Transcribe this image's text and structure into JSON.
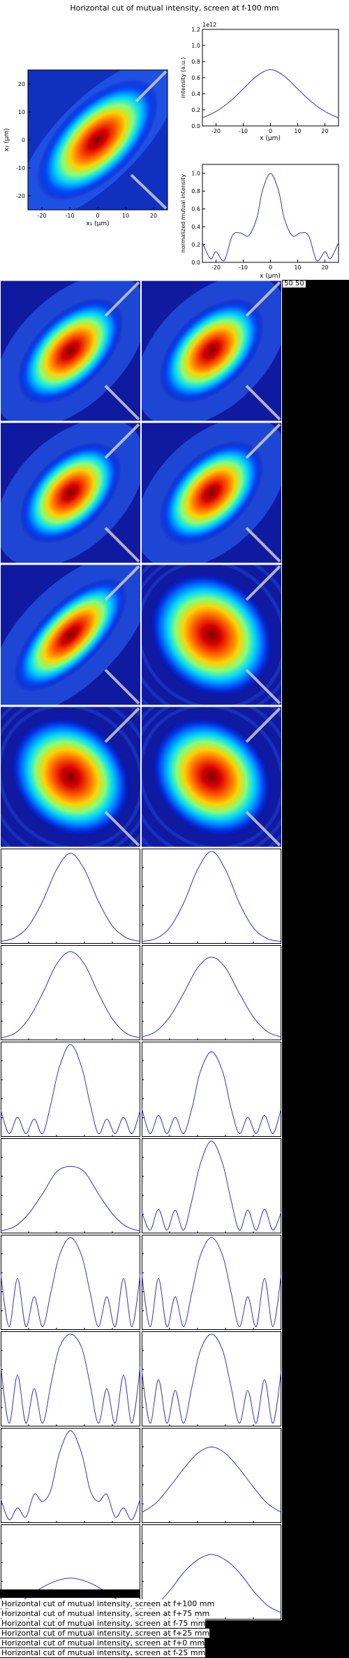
{
  "figure": {
    "title": "Horizontal cut of mutual intensity, screen at f-100 mm",
    "corner_label": "50 50",
    "heatmap": {
      "xlabel": "x₁ (μm)",
      "ylabel": "x₂ (μm)",
      "ticks": [
        "-20",
        "-10",
        "0",
        "10",
        "20"
      ]
    },
    "intensity_plot": {
      "ylabel": "intensity (a.u.)",
      "xlabel": "x (μm)",
      "exponent_label": "1e12",
      "yticks": [
        "0.0",
        "0.2",
        "0.4",
        "0.6",
        "0.8",
        "1.0",
        "1.2"
      ],
      "xticks": [
        "-20",
        "-10",
        "0",
        "10",
        "20"
      ]
    },
    "coherence_plot": {
      "ylabel": "normalized mutual intensity",
      "xlabel": "x (μm)",
      "yticks": [
        "0.0",
        "0.2",
        "0.4",
        "0.6",
        "0.8",
        "1.0"
      ],
      "xticks": [
        "-20",
        "-10",
        "0",
        "10",
        "20"
      ]
    }
  },
  "titles_list": [
    "Horizontal cut of mutual intensity, screen at f+100 mm",
    "Horizontal cut of mutual intensity, screen at f+75 mm",
    "Horizontal cut of mutual intensity, screen at f-75 mm",
    "Horizontal cut of mutual intensity, screen at f+25 mm",
    "Horizontal cut of mutual intensity, screen at f+0 mm",
    "Horizontal cut of mutual intensity, screen at f-25 mm"
  ],
  "colors": {
    "line": "#3333cc",
    "heat_low": "#00007f",
    "heat_high": "#7f0000",
    "cut_line": "#cccccc"
  },
  "chart_data": [
    {
      "type": "heatmap",
      "title": "Horizontal cut of mutual intensity, screen at f-100 mm",
      "xlabel": "x₁ (μm)",
      "ylabel": "x₂ (μm)",
      "xlim": [
        -25,
        25
      ],
      "ylim": [
        -25,
        25
      ],
      "correlation": 0.85,
      "width": 11
    },
    {
      "type": "line",
      "xlabel": "x (μm)",
      "ylabel": "intensity (a.u.)",
      "xlim": [
        -25,
        25
      ],
      "ylim": [
        0,
        1200000000000.0
      ],
      "x": [
        -25,
        -20,
        -15,
        -10,
        -5,
        0,
        5,
        10,
        15,
        20,
        25
      ],
      "y": [
        100000000000.0,
        180000000000.0,
        300000000000.0,
        460000000000.0,
        620000000000.0,
        700000000000.0,
        620000000000.0,
        460000000000.0,
        300000000000.0,
        180000000000.0,
        100000000000.0
      ]
    },
    {
      "type": "line",
      "xlabel": "x (μm)",
      "ylabel": "normalized mutual intensity",
      "xlim": [
        -25,
        25
      ],
      "ylim": [
        0,
        1.1
      ],
      "x": [
        -25,
        -22,
        -20,
        -17,
        -14,
        -11,
        -8,
        -5,
        -3,
        0,
        3,
        5,
        8,
        11,
        14,
        17,
        20,
        22,
        25
      ],
      "y": [
        0.22,
        0.04,
        0.12,
        0.02,
        0.3,
        0.33,
        0.3,
        0.5,
        0.8,
        1.0,
        0.8,
        0.5,
        0.3,
        0.33,
        0.3,
        0.02,
        0.12,
        0.04,
        0.22
      ]
    },
    {
      "type": "heatmap",
      "panels": [
        {
          "correlation": 0.82,
          "width": 9,
          "ring": 0.0
        },
        {
          "correlation": 0.8,
          "width": 8.5,
          "ring": 0.0
        },
        {
          "correlation": 0.8,
          "width": 8,
          "ring": 0.0
        },
        {
          "correlation": 0.8,
          "width": 8.5,
          "ring": 0.0
        },
        {
          "correlation": 0.88,
          "width": 11,
          "ring": 0.0
        },
        {
          "correlation": 0.45,
          "width": 7,
          "ring": 0.15
        },
        {
          "correlation": 0.45,
          "width": 6.5,
          "ring": 0.2
        },
        {
          "correlation": 0.45,
          "width": 6.5,
          "ring": 0.2
        }
      ]
    },
    {
      "type": "line",
      "panels": [
        {
          "x": [
            -25,
            -20,
            -15,
            -10,
            -5,
            0,
            5,
            10,
            15,
            20,
            25
          ],
          "y": [
            0.01,
            0.05,
            0.18,
            0.45,
            0.8,
            0.98,
            0.8,
            0.45,
            0.18,
            0.05,
            0.01
          ]
        },
        {
          "x": [
            -25,
            -20,
            -15,
            -10,
            -5,
            0,
            5,
            10,
            15,
            20,
            25
          ],
          "y": [
            0.01,
            0.04,
            0.16,
            0.43,
            0.8,
            1.0,
            0.8,
            0.43,
            0.16,
            0.04,
            0.01
          ]
        },
        {
          "x": [
            -25,
            -20,
            -15,
            -10,
            -5,
            0,
            5,
            10,
            15,
            20,
            25
          ],
          "y": [
            0.01,
            0.06,
            0.22,
            0.5,
            0.82,
            0.96,
            0.82,
            0.5,
            0.22,
            0.06,
            0.01
          ]
        },
        {
          "x": [
            -25,
            -20,
            -15,
            -10,
            -5,
            0,
            5,
            10,
            15,
            20,
            25
          ],
          "y": [
            0.02,
            0.08,
            0.24,
            0.5,
            0.78,
            0.9,
            0.78,
            0.5,
            0.24,
            0.08,
            0.02
          ]
        },
        {
          "x": [
            -25,
            -22,
            -19,
            -16,
            -13,
            -10,
            -7,
            -4,
            0,
            4,
            7,
            10,
            13,
            16,
            19,
            22,
            25
          ],
          "y": [
            0.28,
            0.02,
            0.2,
            0.02,
            0.18,
            0.02,
            0.35,
            0.75,
            1.0,
            0.75,
            0.35,
            0.02,
            0.18,
            0.02,
            0.2,
            0.02,
            0.28
          ]
        },
        {
          "x": [
            -25,
            -22,
            -19,
            -16,
            -13,
            -10,
            -7,
            -4,
            0,
            4,
            7,
            10,
            13,
            16,
            19,
            22,
            25
          ],
          "y": [
            0.3,
            0.02,
            0.22,
            0.02,
            0.2,
            0.02,
            0.3,
            0.7,
            0.92,
            0.7,
            0.3,
            0.02,
            0.2,
            0.02,
            0.22,
            0.02,
            0.3
          ]
        },
        {
          "x": [
            -25,
            -20,
            -15,
            -10,
            -5,
            0,
            5,
            10,
            15,
            20,
            25
          ],
          "y": [
            0.01,
            0.06,
            0.2,
            0.42,
            0.66,
            0.72,
            0.66,
            0.42,
            0.2,
            0.06,
            0.01
          ]
        },
        {
          "x": [
            -25,
            -22,
            -19,
            -16,
            -13,
            -10,
            -7,
            -4,
            0,
            4,
            7,
            10,
            13,
            16,
            19,
            22,
            25
          ],
          "y": [
            0.22,
            0.02,
            0.25,
            0.02,
            0.24,
            0.02,
            0.35,
            0.75,
            1.0,
            0.75,
            0.35,
            0.02,
            0.24,
            0.02,
            0.25,
            0.02,
            0.22
          ]
        },
        {
          "x": [
            -25,
            -22,
            -19,
            -16,
            -13,
            -10,
            -7,
            -4,
            0,
            4,
            7,
            10,
            13,
            16,
            19,
            22,
            25
          ],
          "y": [
            0.6,
            0.02,
            0.55,
            0.02,
            0.35,
            0.02,
            0.4,
            0.8,
            1.0,
            0.8,
            0.4,
            0.02,
            0.35,
            0.02,
            0.55,
            0.02,
            0.6
          ]
        },
        {
          "x": [
            -25,
            -22,
            -19,
            -16,
            -13,
            -10,
            -7,
            -4,
            0,
            4,
            7,
            10,
            13,
            16,
            19,
            22,
            25
          ],
          "y": [
            0.6,
            0.02,
            0.55,
            0.02,
            0.35,
            0.02,
            0.4,
            0.8,
            1.0,
            0.8,
            0.4,
            0.02,
            0.35,
            0.02,
            0.55,
            0.02,
            0.6
          ]
        },
        {
          "x": [
            -25,
            -22,
            -19,
            -16,
            -13,
            -10,
            -7,
            -4,
            0,
            4,
            7,
            10,
            13,
            16,
            19,
            22,
            25
          ],
          "y": [
            0.65,
            0.02,
            0.55,
            0.02,
            0.4,
            0.02,
            0.45,
            0.85,
            1.0,
            0.85,
            0.45,
            0.02,
            0.4,
            0.02,
            0.55,
            0.02,
            0.65
          ]
        },
        {
          "x": [
            -25,
            -22,
            -19,
            -16,
            -13,
            -10,
            -7,
            -4,
            0,
            4,
            7,
            10,
            13,
            16,
            19,
            22,
            25
          ],
          "y": [
            0.6,
            0.02,
            0.5,
            0.02,
            0.38,
            0.02,
            0.42,
            0.82,
            1.0,
            0.82,
            0.42,
            0.02,
            0.38,
            0.02,
            0.5,
            0.02,
            0.6
          ]
        },
        {
          "x": [
            -25,
            -22,
            -19,
            -16,
            -13,
            -10,
            -7,
            -4,
            0,
            4,
            7,
            10,
            13,
            16,
            19,
            22,
            25
          ],
          "y": [
            0.25,
            0.02,
            0.15,
            0.05,
            0.3,
            0.22,
            0.35,
            0.75,
            1.0,
            0.75,
            0.35,
            0.22,
            0.3,
            0.05,
            0.15,
            0.02,
            0.25
          ]
        },
        {
          "x": [
            -25,
            -20,
            -15,
            -10,
            -5,
            0,
            5,
            10,
            15,
            20,
            25
          ],
          "y": [
            0.1,
            0.2,
            0.38,
            0.58,
            0.75,
            0.82,
            0.75,
            0.58,
            0.38,
            0.2,
            0.1
          ]
        },
        {
          "x": [
            -25,
            -20,
            -15,
            -10,
            -5,
            0,
            5,
            10,
            15,
            20,
            25
          ],
          "y": [
            0.08,
            0.14,
            0.24,
            0.34,
            0.41,
            0.44,
            0.41,
            0.34,
            0.24,
            0.14,
            0.08
          ]
        },
        {
          "x": [
            -25,
            -20,
            -15,
            -10,
            -5,
            0,
            5,
            10,
            15,
            20,
            25
          ],
          "y": [
            0.06,
            0.14,
            0.3,
            0.5,
            0.64,
            0.7,
            0.64,
            0.5,
            0.3,
            0.14,
            0.06
          ]
        }
      ]
    }
  ]
}
